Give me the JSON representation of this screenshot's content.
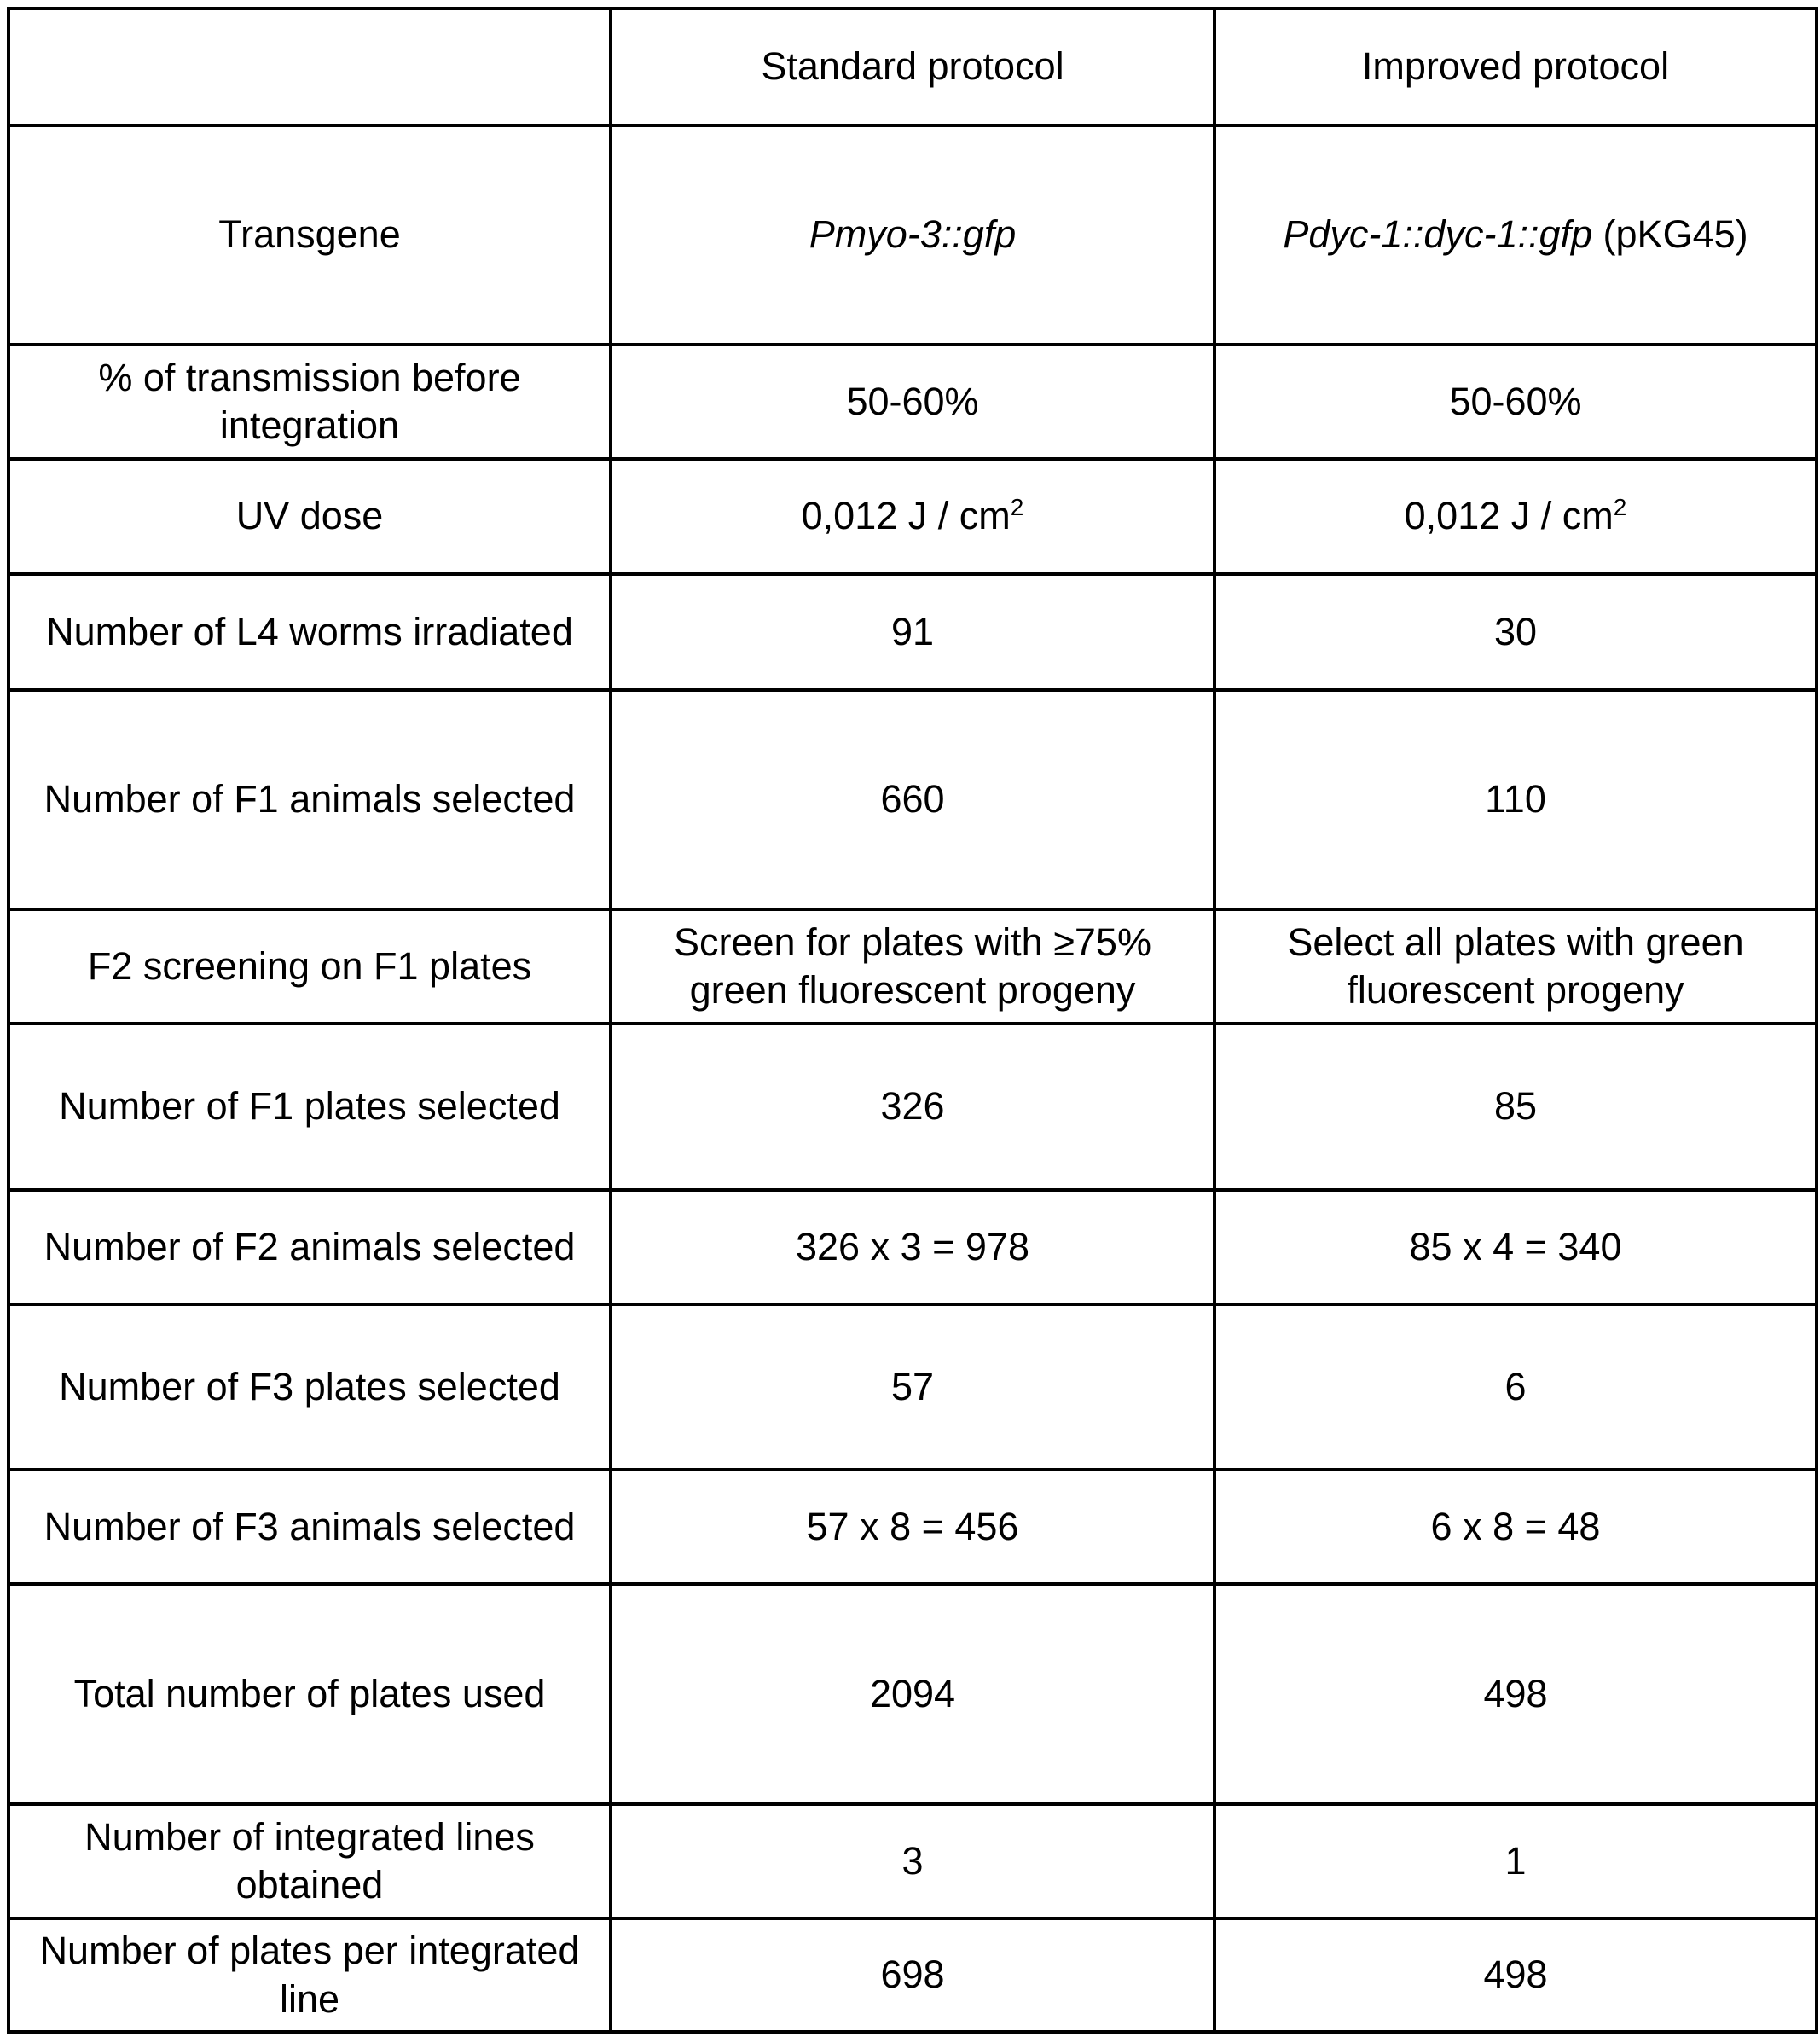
{
  "headers": [
    "",
    "Standard protocol",
    "Improved protocol"
  ],
  "transgene": {
    "label": "Transgene",
    "standard": "Pmyo-3::gfp",
    "improved_italic": "Pdyc-1::dyc-1::gfp",
    "improved_suffix": " (pKG45)"
  },
  "uv": {
    "label": "UV dose",
    "standard": "0,012 J / cm",
    "improved": "0,012 J / cm",
    "sup": "2"
  },
  "rows": [
    {
      "label": "% of transmission before integration",
      "standard": "50-60%",
      "improved": "50-60%"
    },
    {
      "label": "Number of L4 worms irradiated",
      "standard": "91",
      "improved": "30"
    },
    {
      "label": "Number of F1 animals selected",
      "standard": "660",
      "improved": "110"
    },
    {
      "label": "F2 screening on F1 plates",
      "standard": "Screen for plates with ≥75% green fluorescent progeny",
      "improved": "Select all plates with green fluorescent progeny"
    },
    {
      "label": "Number of F1 plates selected",
      "standard": "326",
      "improved": "85"
    },
    {
      "label": "Number of F2 animals selected",
      "standard": "326 x 3 = 978",
      "improved": "85 x 4 = 340"
    },
    {
      "label": "Number of F3 plates selected",
      "standard": "57",
      "improved": "6"
    },
    {
      "label": "Number of F3 animals selected",
      "standard": "57 x 8 = 456",
      "improved": "6 x 8 = 48"
    },
    {
      "label": "Total number of plates used",
      "standard": "2094",
      "improved": "498"
    },
    {
      "label": "Number of integrated lines obtained",
      "standard": "3",
      "improved": "1"
    },
    {
      "label": "Number of plates per integrated line",
      "standard": "698",
      "improved": "498"
    }
  ]
}
